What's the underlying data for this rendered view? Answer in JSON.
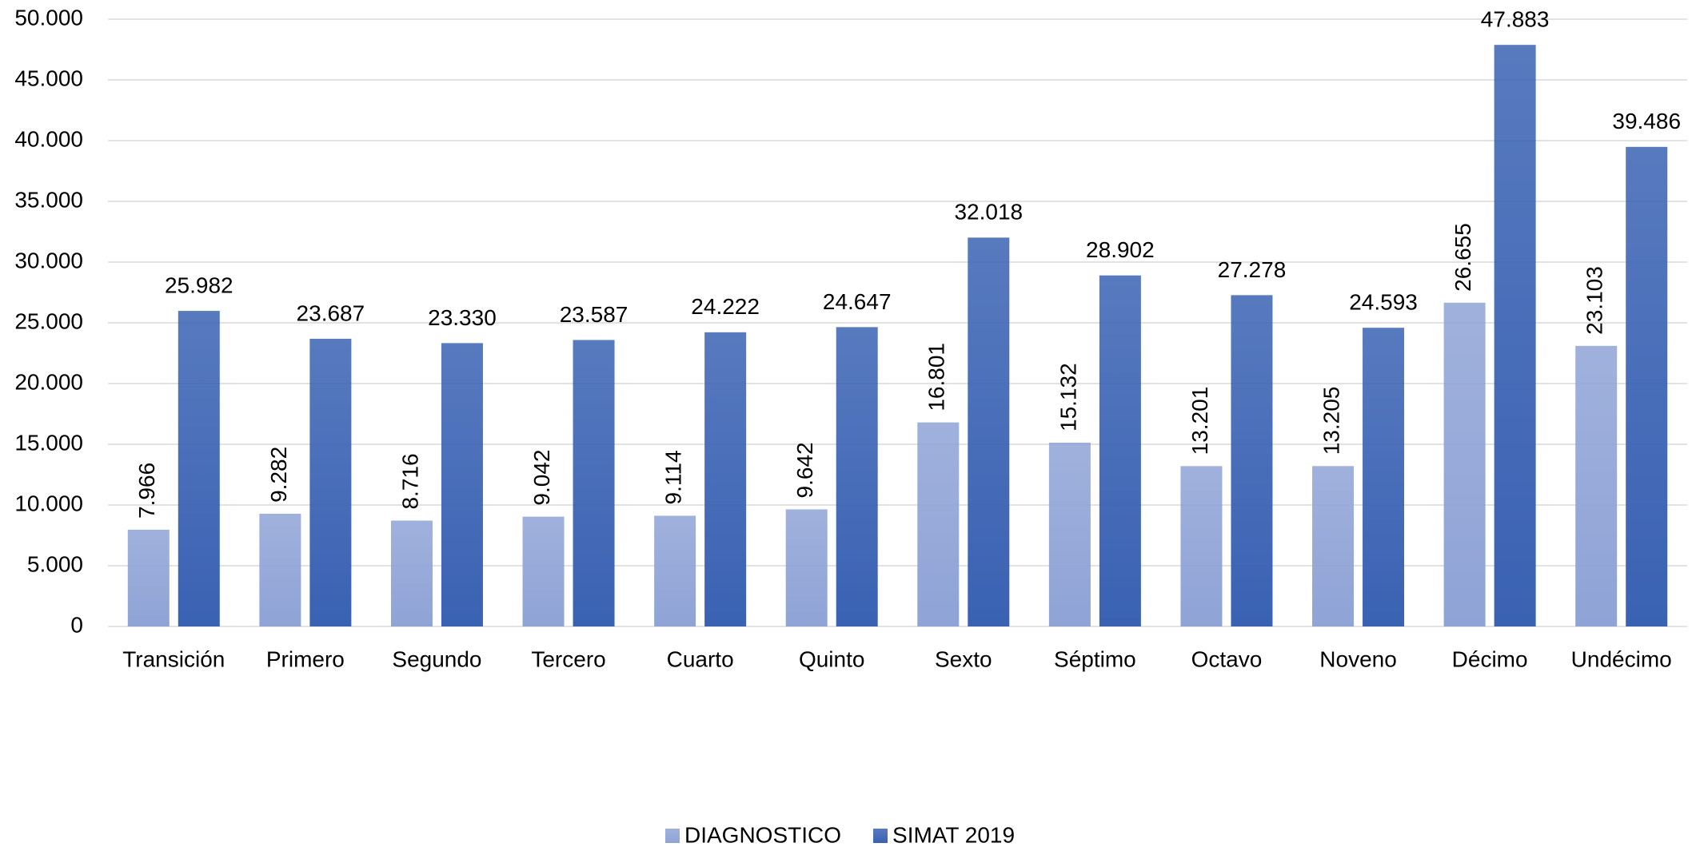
{
  "chart_data": {
    "type": "bar",
    "categories": [
      "Transición",
      "Primero",
      "Segundo",
      "Tercero",
      "Cuarto",
      "Quinto",
      "Sexto",
      "Séptimo",
      "Octavo",
      "Noveno",
      "Décimo",
      "Undécimo"
    ],
    "series": [
      {
        "name": "DIAGNOSTICO",
        "color": "#8fa3d6",
        "values": [
          7966,
          9282,
          8716,
          9042,
          9114,
          9642,
          16801,
          15132,
          13201,
          13205,
          26655,
          23103
        ],
        "value_labels": [
          "7.966",
          "9.282",
          "8.716",
          "9.042",
          "9.114",
          "9.642",
          "16.801",
          "15.132",
          "13.201",
          "13.205",
          "26.655",
          "23.103"
        ]
      },
      {
        "name": "SIMAT 2019",
        "color": "#3a62b3",
        "values": [
          25982,
          23687,
          23330,
          23587,
          24222,
          24647,
          32018,
          28902,
          27278,
          24593,
          47883,
          39486
        ],
        "value_labels": [
          "25.982",
          "23.687",
          "23.330",
          "23.587",
          "24.222",
          "24.647",
          "32.018",
          "28.902",
          "27.278",
          "24.593",
          "47.883",
          "39.486"
        ]
      }
    ],
    "ylim": [
      0,
      50000
    ],
    "yticks": [
      {
        "value": 0,
        "label": "0"
      },
      {
        "value": 5000,
        "label": "5.000"
      },
      {
        "value": 10000,
        "label": "10.000"
      },
      {
        "value": 15000,
        "label": "15.000"
      },
      {
        "value": 20000,
        "label": "20.000"
      },
      {
        "value": 25000,
        "label": "25.000"
      },
      {
        "value": 30000,
        "label": "30.000"
      },
      {
        "value": 35000,
        "label": "35.000"
      },
      {
        "value": 40000,
        "label": "40.000"
      },
      {
        "value": 45000,
        "label": "45.000"
      },
      {
        "value": 50000,
        "label": "50.000"
      }
    ],
    "grid": true,
    "legend": "bottom"
  }
}
